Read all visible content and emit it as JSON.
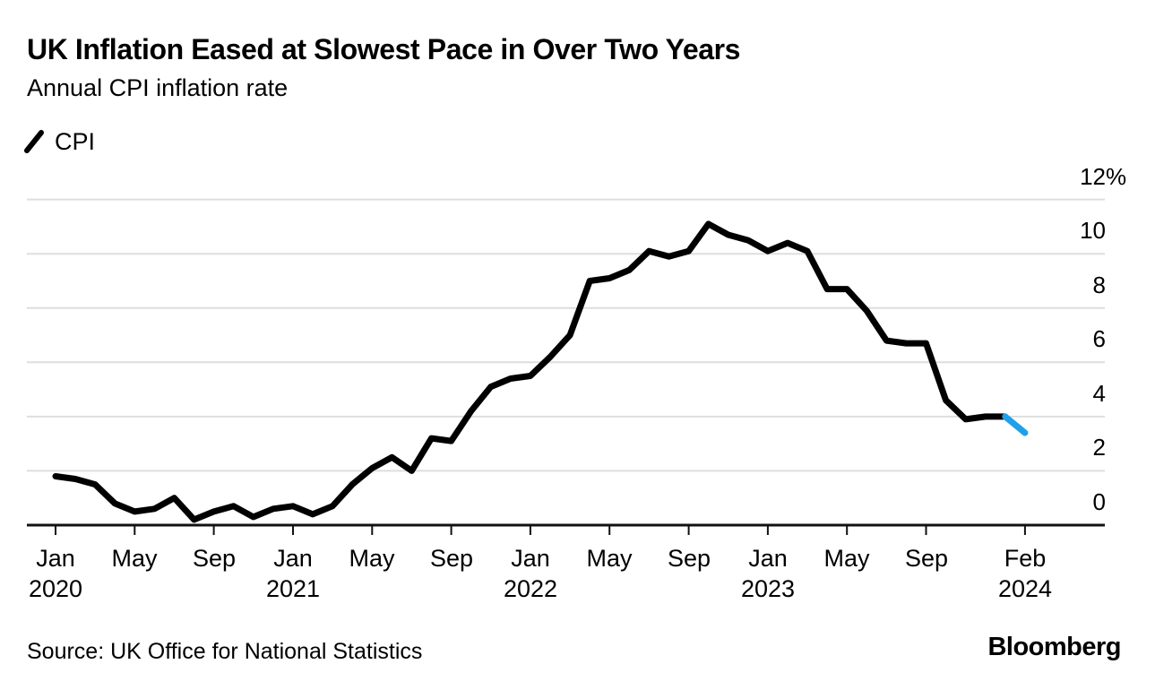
{
  "header": {
    "title": "UK Inflation Eased at Slowest Pace in Over Two Years",
    "subtitle": "Annual CPI inflation rate"
  },
  "legend": {
    "items": [
      {
        "label": "CPI",
        "color": "#000000"
      }
    ]
  },
  "footer": {
    "source": "Source: UK Office for National Statistics",
    "brand": "Bloomberg"
  },
  "chart_data": {
    "type": "line",
    "title": "UK Inflation Eased at Slowest Pace in Over Two Years",
    "subtitle": "Annual CPI inflation rate",
    "xlabel": "",
    "ylabel": "",
    "x_start": "Jan 2020",
    "x_end": "Feb 2024",
    "frequency": "monthly",
    "ylim": [
      0,
      12
    ],
    "grid": "horizontal",
    "legend_position": "top-left",
    "colors": {
      "line": "#000000",
      "highlight": "#1fa0e9",
      "gridline": "#dedede",
      "axis": "#111111",
      "background": "#ffffff"
    },
    "series": [
      {
        "name": "CPI",
        "highlight_last_points": 2,
        "values": [
          1.8,
          1.7,
          1.5,
          0.8,
          0.5,
          0.6,
          1.0,
          0.2,
          0.5,
          0.7,
          0.3,
          0.6,
          0.7,
          0.4,
          0.7,
          1.5,
          2.1,
          2.5,
          2.0,
          3.2,
          3.1,
          4.2,
          5.1,
          5.4,
          5.5,
          6.2,
          7.0,
          9.0,
          9.1,
          9.4,
          10.1,
          9.9,
          10.1,
          11.1,
          10.7,
          10.5,
          10.1,
          10.4,
          10.1,
          8.7,
          8.7,
          7.9,
          6.8,
          6.7,
          6.7,
          4.6,
          3.9,
          4.0,
          4.0,
          3.4
        ]
      }
    ],
    "y_axis": {
      "unit": "%",
      "ticks": [
        {
          "value": 12,
          "label": "12",
          "suffix": "%"
        },
        {
          "value": 10,
          "label": "10"
        },
        {
          "value": 8,
          "label": "8"
        },
        {
          "value": 6,
          "label": "6"
        },
        {
          "value": 4,
          "label": "4"
        },
        {
          "value": 2,
          "label": "2"
        },
        {
          "value": 0,
          "label": "0"
        }
      ]
    },
    "x_axis": {
      "ticks": [
        {
          "m": 0,
          "month": "Jan",
          "year": "2020"
        },
        {
          "m": 4,
          "month": "May"
        },
        {
          "m": 8,
          "month": "Sep"
        },
        {
          "m": 12,
          "month": "Jan",
          "year": "2021"
        },
        {
          "m": 16,
          "month": "May"
        },
        {
          "m": 20,
          "month": "Sep"
        },
        {
          "m": 24,
          "month": "Jan",
          "year": "2022"
        },
        {
          "m": 28,
          "month": "May"
        },
        {
          "m": 32,
          "month": "Sep"
        },
        {
          "m": 36,
          "month": "Jan",
          "year": "2023"
        },
        {
          "m": 40,
          "month": "May"
        },
        {
          "m": 44,
          "month": "Sep"
        },
        {
          "m": 49,
          "month": "Feb",
          "year": "2024"
        }
      ]
    }
  }
}
